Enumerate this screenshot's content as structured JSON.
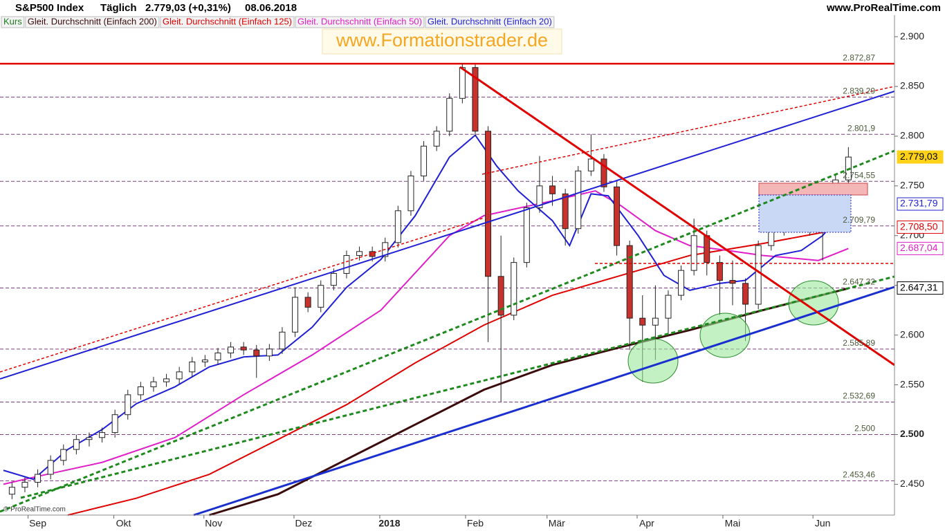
{
  "chart_data": {
    "type": "candlestick",
    "title": "S&P500 Index",
    "interval": "Täglich",
    "price_change": "2.779,03 (+0,31%)",
    "date": "08.06.2018",
    "source": "www.ProRealTime.com",
    "watermark": "www.Formationstrader.de",
    "copyright": "© ProRealTime.com",
    "price_name": "Kurs",
    "up_color": "#ffffff",
    "down_color": "#c8322d",
    "x": [
      2,
      5,
      8,
      11,
      14,
      17,
      20,
      23,
      26,
      29,
      32,
      35,
      38,
      41,
      44,
      47,
      50,
      53,
      56,
      59,
      62,
      65,
      68,
      71,
      74,
      77,
      80,
      83,
      86,
      89,
      92,
      95,
      98,
      101,
      104,
      107,
      110,
      113,
      116,
      119,
      122,
      125,
      128,
      131,
      134,
      137,
      140,
      143,
      146,
      149,
      152,
      155,
      158,
      161,
      164,
      167,
      170,
      173,
      176,
      179,
      182,
      185,
      188,
      191,
      194,
      197
    ],
    "open": [
      2440,
      2447,
      2452,
      2460,
      2474,
      2485,
      2495,
      2497,
      2502,
      2520,
      2540,
      2548,
      2553,
      2556,
      2563,
      2573,
      2575,
      2582,
      2588,
      2585,
      2579,
      2586,
      2603,
      2638,
      2628,
      2650,
      2662,
      2680,
      2684,
      2679,
      2693,
      2725,
      2760,
      2790,
      2805,
      2838,
      2869,
      2805,
      2659,
      2620,
      2673,
      2728,
      2750,
      2742,
      2707,
      2765,
      2777,
      2749,
      2690,
      2617,
      2610,
      2617,
      2640,
      2665,
      2700,
      2673,
      2655,
      2652,
      2631,
      2690,
      2728,
      2714,
      2735,
      2714,
      2710,
      2756
    ],
    "high": [
      2452,
      2457,
      2465,
      2479,
      2490,
      2500,
      2502,
      2507,
      2525,
      2545,
      2553,
      2558,
      2561,
      2568,
      2578,
      2580,
      2587,
      2593,
      2593,
      2590,
      2591,
      2608,
      2648,
      2643,
      2655,
      2667,
      2685,
      2689,
      2689,
      2698,
      2730,
      2765,
      2795,
      2810,
      2843,
      2873,
      2872,
      2810,
      2700,
      2678,
      2733,
      2780,
      2760,
      2747,
      2770,
      2802,
      2782,
      2754,
      2695,
      2640,
      2650,
      2645,
      2670,
      2717,
      2705,
      2680,
      2675,
      2657,
      2695,
      2733,
      2740,
      2742,
      2740,
      2730,
      2762,
      2789
    ],
    "low": [
      2435,
      2442,
      2447,
      2455,
      2469,
      2480,
      2488,
      2492,
      2497,
      2515,
      2535,
      2543,
      2548,
      2551,
      2558,
      2568,
      2570,
      2577,
      2580,
      2557,
      2574,
      2581,
      2598,
      2623,
      2623,
      2645,
      2657,
      2675,
      2674,
      2674,
      2688,
      2720,
      2755,
      2785,
      2800,
      2833,
      2800,
      2593,
      2533,
      2615,
      2668,
      2723,
      2730,
      2690,
      2702,
      2760,
      2744,
      2680,
      2585,
      2553,
      2575,
      2600,
      2635,
      2660,
      2660,
      2620,
      2630,
      2594,
      2626,
      2685,
      2700,
      2705,
      2700,
      2675,
      2705,
      2752
    ],
    "close": [
      2447,
      2452,
      2460,
      2474,
      2485,
      2495,
      2497,
      2502,
      2520,
      2540,
      2548,
      2553,
      2556,
      2563,
      2573,
      2575,
      2582,
      2588,
      2585,
      2579,
      2586,
      2603,
      2638,
      2628,
      2650,
      2662,
      2680,
      2684,
      2679,
      2693,
      2725,
      2760,
      2790,
      2805,
      2838,
      2869,
      2805,
      2659,
      2620,
      2673,
      2728,
      2750,
      2742,
      2707,
      2765,
      2777,
      2749,
      2690,
      2617,
      2610,
      2617,
      2640,
      2665,
      2700,
      2673,
      2655,
      2652,
      2631,
      2690,
      2728,
      2714,
      2735,
      2714,
      2710,
      2756,
      2779
    ],
    "series": [
      {
        "name": "Gleit. Durchschnitt (Einfach 200)",
        "color": "#3b0a0a",
        "x": [
          48,
          64,
          80,
          96,
          112,
          128,
          144,
          160,
          177,
          197
        ],
        "values": [
          2419,
          2440,
          2475,
          2510,
          2545,
          2570,
          2588,
          2605,
          2625,
          2647
        ]
      },
      {
        "name": "Gleit. Durchschnitt (Einfach 125)",
        "color": "#e00000",
        "x": [
          15,
          31,
          48,
          64,
          80,
          96,
          112,
          128,
          144,
          160,
          177,
          197
        ],
        "values": [
          2419,
          2436,
          2460,
          2495,
          2530,
          2572,
          2610,
          2640,
          2660,
          2680,
          2692,
          2708
        ]
      },
      {
        "name": "Gleit. Durchschnitt (Einfach 50)",
        "color": "#e01ec8",
        "x": [
          0,
          7,
          23,
          40,
          56,
          72,
          88,
          104,
          112,
          128,
          138,
          144,
          152,
          160,
          169,
          177,
          185,
          190,
          197
        ],
        "values": [
          2450,
          2457,
          2472,
          2497,
          2540,
          2580,
          2625,
          2700,
          2720,
          2735,
          2745,
          2730,
          2705,
          2690,
          2685,
          2680,
          2677,
          2675,
          2687
        ]
      },
      {
        "name": "Gleit. Durchschnitt (Einfach 20)",
        "color": "#1f1fd6",
        "x": [
          0,
          7,
          15,
          23,
          31,
          40,
          48,
          56,
          64,
          72,
          80,
          88,
          96,
          104,
          110,
          115,
          120,
          128,
          132,
          137,
          141,
          148,
          154,
          160,
          167,
          173,
          180,
          186,
          191,
          197
        ],
        "values": [
          2464,
          2455,
          2485,
          2505,
          2531,
          2548,
          2568,
          2578,
          2580,
          2608,
          2648,
          2676,
          2720,
          2779,
          2801,
          2770,
          2745,
          2715,
          2690,
          2742,
          2740,
          2700,
          2660,
          2645,
          2652,
          2655,
          2680,
          2685,
          2700,
          2730
        ]
      }
    ],
    "levels": [
      {
        "value": 2872.87,
        "label": "2.872,87",
        "color": "#e00000"
      },
      {
        "value": 2839.29,
        "label": "2.839,29",
        "color": "#7a3a7a"
      },
      {
        "value": 2801.9,
        "label": "2.801,9",
        "color": "#7a3a7a"
      },
      {
        "value": 2754.55,
        "label": "2.754,55",
        "color": "#7a3a7a"
      },
      {
        "value": 2709.79,
        "label": "2.709,79",
        "color": "#7a3a7a"
      },
      {
        "value": 2647.32,
        "label": "2.647,32",
        "color": "#7a3a7a"
      },
      {
        "value": 2585.89,
        "label": "2.585,89",
        "color": "#7a3a7a"
      },
      {
        "value": 2532.69,
        "label": "2.532,69",
        "color": "#7a3a7a"
      },
      {
        "value": 2500,
        "label": "2.500",
        "color": "#7a3a7a"
      },
      {
        "value": 2453.46,
        "label": "2.453,46",
        "color": "#7a3a7a"
      }
    ],
    "price_labels": [
      {
        "value": 2779.03,
        "label": "2.779,03",
        "color": "#ffd21a"
      },
      {
        "value": 2731.79,
        "label": "2.731,79",
        "color": "#1f1fd6"
      },
      {
        "value": 2708.5,
        "label": "2.708,50",
        "color": "#e00000"
      },
      {
        "value": 2687.04,
        "label": "2.687,04",
        "color": "#e01ec8"
      },
      {
        "value": 2647.31,
        "label": "2.647,31",
        "color": "#000000"
      }
    ],
    "xlim": [
      -0.8,
      207.75
    ],
    "ylim": [
      2419,
      2921.6
    ],
    "xticks": [
      {
        "value": 8,
        "label": "Sep"
      },
      {
        "value": 28,
        "label": "Okt"
      },
      {
        "value": 49,
        "label": "Nov"
      },
      {
        "value": 70,
        "label": "Dez"
      },
      {
        "value": 90,
        "label": "2018"
      },
      {
        "value": 110,
        "label": "Feb"
      },
      {
        "value": 129,
        "label": "Mär"
      },
      {
        "value": 150,
        "label": "Apr"
      },
      {
        "value": 170,
        "label": "Mai"
      },
      {
        "value": 191,
        "label": "Jun"
      }
    ],
    "yticks": [
      {
        "value": 2450,
        "label": "2.450"
      },
      {
        "value": 2500,
        "label": "2.500"
      },
      {
        "value": 2550,
        "label": "2.550"
      },
      {
        "value": 2600,
        "label": "2.600"
      },
      {
        "value": 2650,
        "label": "2.650"
      },
      {
        "value": 2700,
        "label": "2.700"
      },
      {
        "value": 2750,
        "label": "2.750"
      },
      {
        "value": 2800,
        "label": "2.800"
      },
      {
        "value": 2850,
        "label": "2.850"
      },
      {
        "value": 2900,
        "label": "2.900"
      }
    ],
    "grid": false
  }
}
